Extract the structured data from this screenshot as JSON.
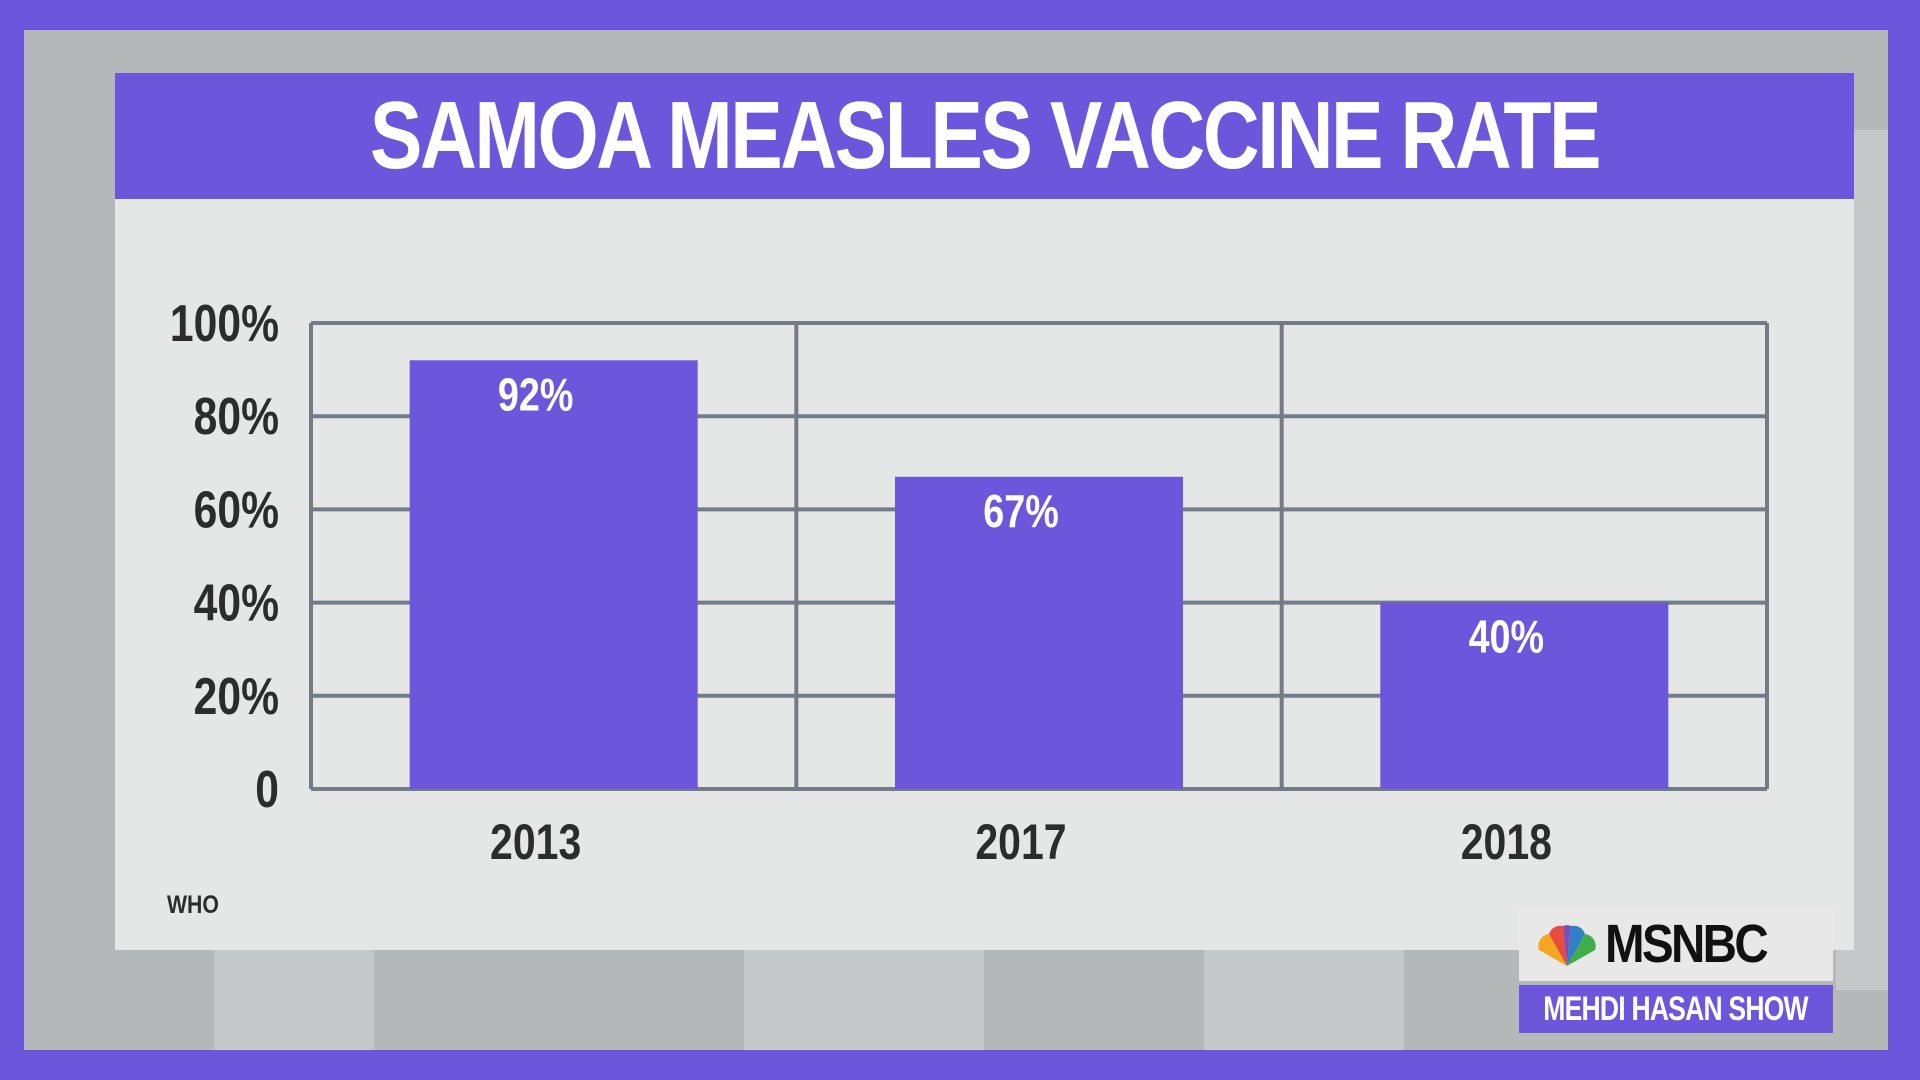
{
  "title": "SAMOA MEASLES VACCINE RATE",
  "source": "WHO",
  "network": {
    "logo_text": "MSNBC",
    "show_name": "MEHDI HASAN SHOW"
  },
  "colors": {
    "accent": "#6c57dc",
    "panel": "#e5e6e6",
    "grid": "#737b86",
    "text": "#2c2c2c"
  },
  "chart_data": {
    "type": "bar",
    "title": "SAMOA MEASLES VACCINE RATE",
    "categories": [
      "2013",
      "2017",
      "2018"
    ],
    "values": [
      92,
      67,
      40
    ],
    "value_labels": [
      "92%",
      "67%",
      "40%"
    ],
    "y_ticks": [
      0,
      20,
      40,
      60,
      80,
      100
    ],
    "y_tick_labels": [
      "0",
      "20%",
      "40%",
      "60%",
      "80%",
      "100%"
    ],
    "ylim": [
      0,
      100
    ],
    "xlabel": "",
    "ylabel": "",
    "grid": true,
    "bar_color": "#6c57dc"
  }
}
